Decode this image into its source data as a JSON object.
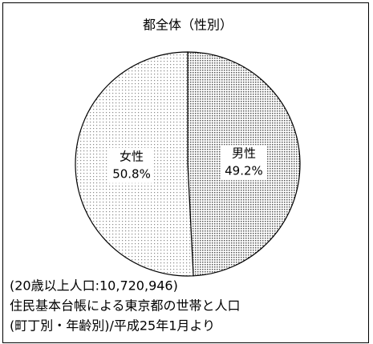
{
  "chart_data": {
    "type": "pie",
    "title": "都全体（性別）",
    "categories": [
      "男性",
      "女性"
    ],
    "values": [
      49.2,
      50.8
    ],
    "value_labels": [
      "49.2%",
      "50.8%"
    ],
    "colors": [
      "#b8b8b8",
      "#dedede"
    ],
    "notes": [
      "(20歳以上人口:10,720,946)",
      "住民基本台帳による東京都の世帯と人口",
      "(町丁別・年齢別)/平成25年1月より"
    ]
  }
}
